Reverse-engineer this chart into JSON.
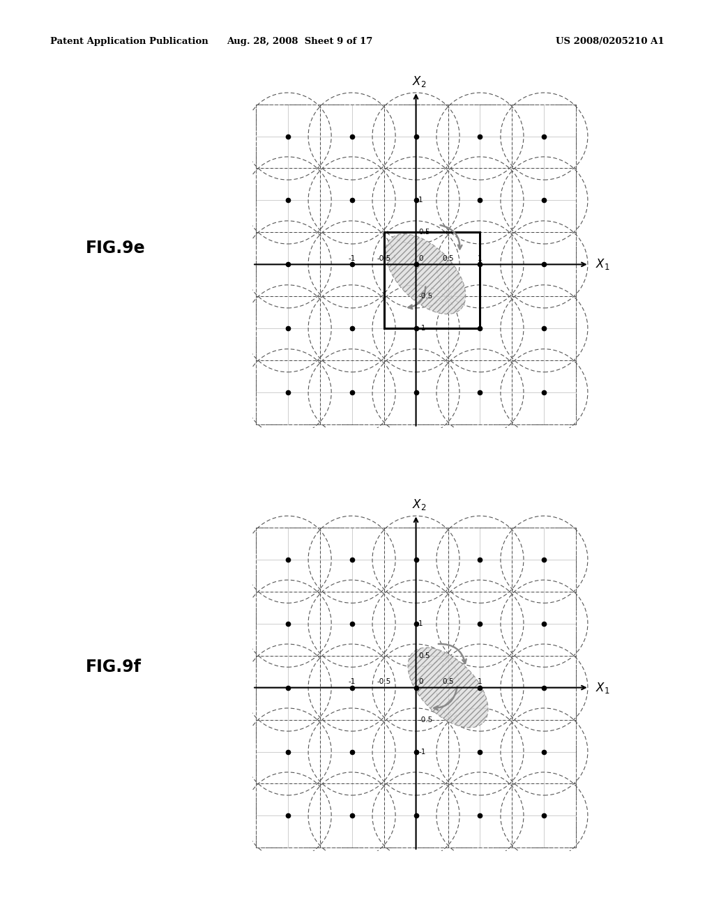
{
  "header_left": "Patent Application Publication",
  "header_center": "Aug. 28, 2008  Sheet 9 of 17",
  "header_right": "US 2008/0205210 A1",
  "fig_labels": [
    "FIG.9e",
    "FIG.9f"
  ],
  "background_color": "#ffffff",
  "grid_fine_color": "#aaaaaa",
  "grid_dash_color": "#444444",
  "circle_color": "#555555",
  "dot_color": "#000000",
  "hatch_color": "#bbbbbb"
}
